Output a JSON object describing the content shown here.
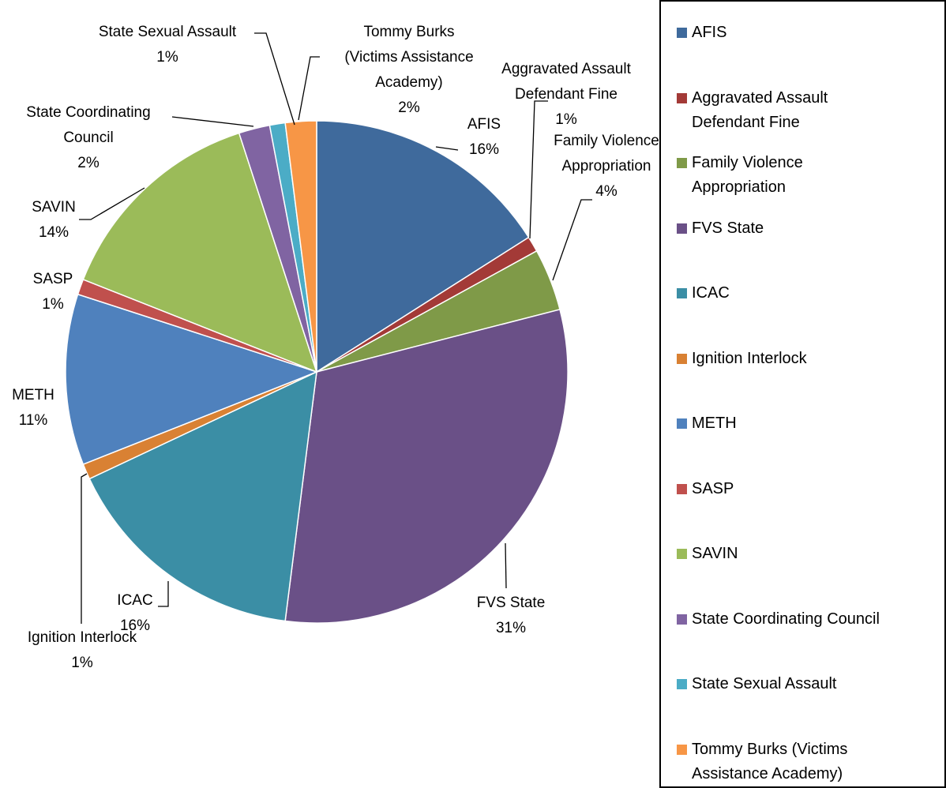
{
  "chart_data": {
    "type": "pie",
    "categories": [
      "AFIS",
      "Aggravated Assault Defendant Fine",
      "Family Violence Appropriation",
      "FVS State",
      "ICAC",
      "Ignition Interlock",
      "METH",
      "SASP",
      "SAVIN",
      "State Coordinating Council",
      "State Sexual Assault",
      "Tommy Burks (Victims Assistance Academy)"
    ],
    "values": [
      16,
      1,
      4,
      31,
      16,
      1,
      11,
      1,
      14,
      2,
      1,
      2
    ],
    "value_labels": [
      "16%",
      "1%",
      "4%",
      "31%",
      "16%",
      "1%",
      "11%",
      "1%",
      "14%",
      "2%",
      "1%",
      "2%"
    ],
    "colors": [
      "#3f6a9c",
      "#a33a37",
      "#7f9a48",
      "#6a5087",
      "#3b8ea5",
      "#d98133",
      "#4f81bd",
      "#c0504d",
      "#9bbb59",
      "#8064a2",
      "#4bacc6",
      "#f79646"
    ],
    "legend": "right"
  }
}
